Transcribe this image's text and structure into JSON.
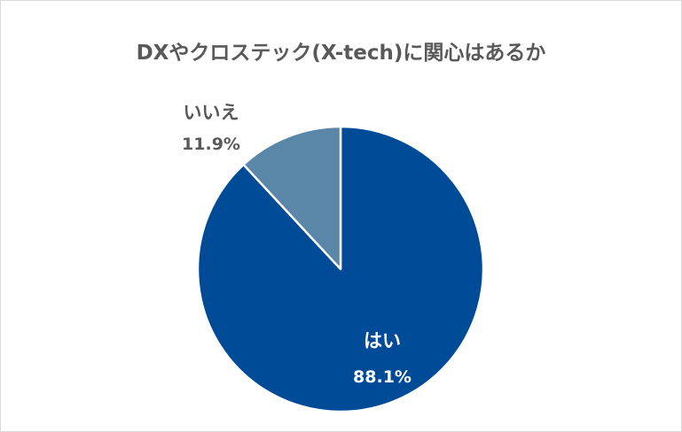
{
  "chart_data": {
    "type": "pie",
    "title": "DXやクロステック(X-tech)に関心はあるか",
    "categories": [
      "はい",
      "いいえ"
    ],
    "values": [
      88.1,
      11.9
    ],
    "value_labels": [
      "88.1%",
      "11.9%"
    ],
    "colors": [
      "#004b97",
      "#5a87a8"
    ],
    "start_angle_deg": 0,
    "direction": "clockwise",
    "legend": "none"
  },
  "colors": {
    "title": "#595959",
    "label_outside": "#595959",
    "label_inside": "#ffffff",
    "border": "#d9d9d9"
  }
}
